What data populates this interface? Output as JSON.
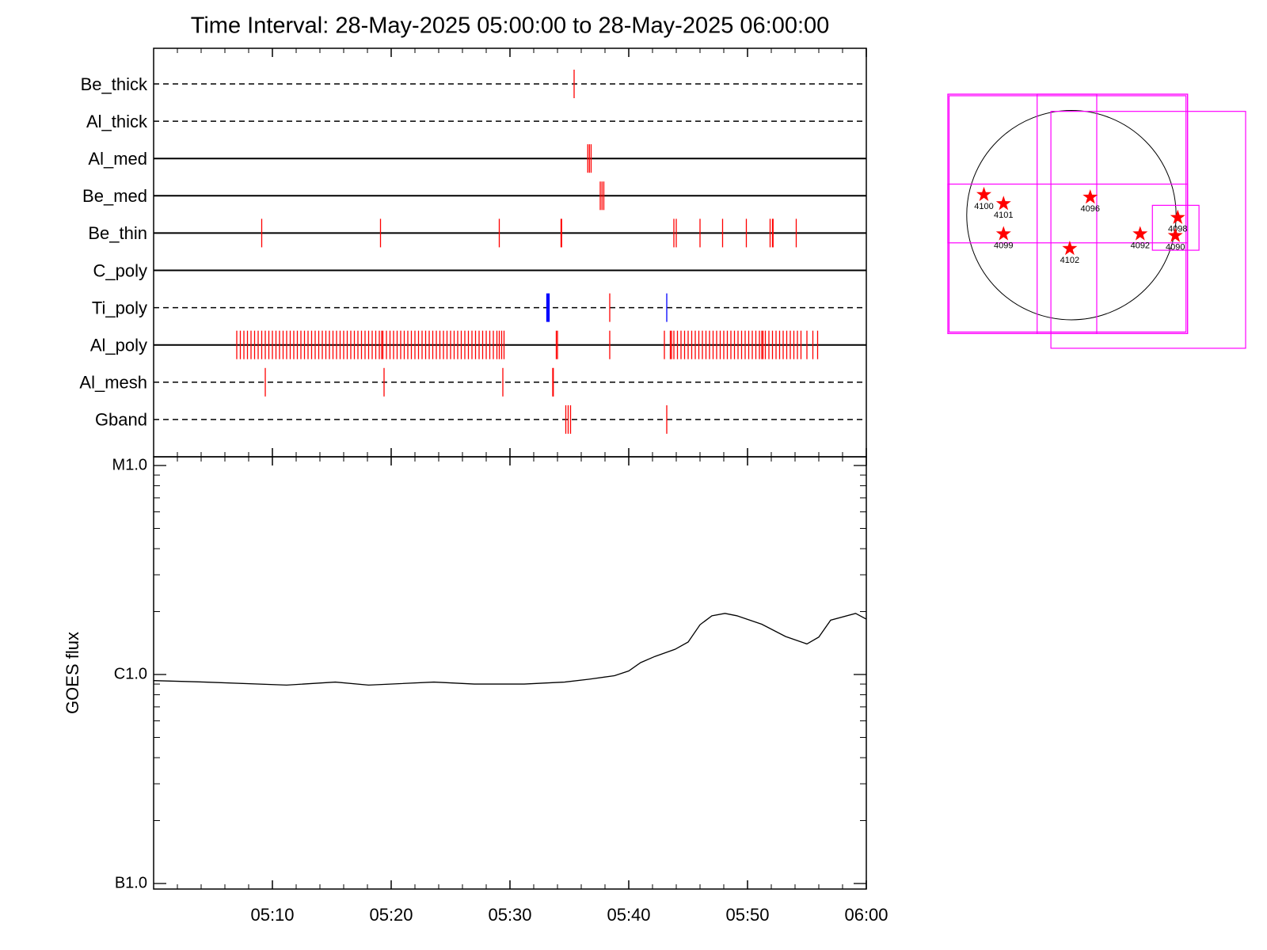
{
  "chart_data": [
    {
      "type": "timeline",
      "title": "Time Interval: 28-May-2025 05:00:00 to 28-May-2025 06:00:00",
      "xlim": [
        0,
        60
      ],
      "xticks": [
        {
          "value": 10,
          "label": "05:10"
        },
        {
          "value": 20,
          "label": "05:20"
        },
        {
          "value": 30,
          "label": "05:30"
        },
        {
          "value": 40,
          "label": "05:40"
        },
        {
          "value": 50,
          "label": "05:50"
        },
        {
          "value": 60,
          "label": "06:00"
        }
      ],
      "xminorticks": [
        2,
        4,
        6,
        8,
        12,
        14,
        16,
        18,
        22,
        24,
        26,
        28,
        32,
        34,
        36,
        38,
        42,
        44,
        46,
        48,
        52,
        54,
        56,
        58
      ],
      "series": [
        {
          "name": "Be_thick",
          "style": "dashed",
          "events": [
            {
              "color": "#ff0000",
              "x": [
                35.4
              ]
            }
          ]
        },
        {
          "name": "Al_thick",
          "style": "dashed",
          "events": []
        },
        {
          "name": "Al_med",
          "style": "solid",
          "events": [
            {
              "color": "#ff0000",
              "x": [
                36.55,
                36.69,
                36.83
              ]
            }
          ]
        },
        {
          "name": "Be_med",
          "style": "solid",
          "events": [
            {
              "color": "#ff0000",
              "x": [
                37.6,
                37.75,
                37.9
              ]
            }
          ]
        },
        {
          "name": "Be_thin",
          "style": "solid",
          "events": [
            {
              "color": "#ff0000",
              "x": [
                9.1,
                19.1,
                29.1,
                34.3,
                34.35,
                43.8,
                44.0,
                46.0,
                47.9,
                49.9,
                51.9,
                52.1,
                52.15,
                54.1
              ]
            }
          ]
        },
        {
          "name": "C_poly",
          "style": "solid",
          "events": []
        },
        {
          "name": "Ti_poly",
          "style": "dashed",
          "events": [
            {
              "color": "#0000ff",
              "x": [
                33.1,
                33.18,
                33.25,
                33.3,
                43.2
              ]
            },
            {
              "color": "#ff0000",
              "x": [
                38.4
              ]
            }
          ]
        },
        {
          "name": "Al_poly",
          "style": "solid",
          "events": [
            {
              "color": "#ff0000",
              "x": [
                7.0,
                7.3,
                7.6,
                7.9,
                8.2,
                8.5,
                8.8,
                9.1,
                9.4,
                9.7,
                10.0,
                10.3,
                10.6,
                10.9,
                11.2,
                11.5,
                11.8,
                12.1,
                12.4,
                12.7,
                13.0,
                13.3,
                13.6,
                13.9,
                14.2,
                14.5,
                14.8,
                15.1,
                15.4,
                15.7,
                16.0,
                16.3,
                16.6,
                16.9,
                17.2,
                17.5,
                17.8,
                18.1,
                18.4,
                18.7,
                19.0,
                19.2,
                19.3,
                19.6,
                19.9,
                20.2,
                20.5,
                20.8,
                21.1,
                21.4,
                21.7,
                22.0,
                22.3,
                22.6,
                22.9,
                23.2,
                23.5,
                23.8,
                24.1,
                24.4,
                24.7,
                25.0,
                25.3,
                25.6,
                25.9,
                26.2,
                26.5,
                26.8,
                27.1,
                27.4,
                27.7,
                28.0,
                28.3,
                28.6,
                28.9,
                29.1,
                29.3,
                29.5,
                33.9,
                34.0,
                38.4,
                43.0,
                43.5,
                43.6,
                43.8,
                44.1,
                44.4,
                44.7,
                45.0,
                45.3,
                45.6,
                45.9,
                46.2,
                46.5,
                46.8,
                47.1,
                47.4,
                47.7,
                48.0,
                48.3,
                48.6,
                48.9,
                49.2,
                49.5,
                49.8,
                50.1,
                50.4,
                50.7,
                51.0,
                51.2,
                51.3,
                51.5,
                51.8,
                52.1,
                52.4,
                52.7,
                53.0,
                53.3,
                53.6,
                53.9,
                54.2,
                54.5,
                55.0,
                55.5,
                55.9
              ]
            }
          ]
        },
        {
          "name": "Al_mesh",
          "style": "dashed",
          "events": [
            {
              "color": "#ff0000",
              "x": [
                9.4,
                19.4,
                29.4,
                33.6,
                33.65
              ]
            }
          ]
        },
        {
          "name": "Gband",
          "style": "dashed",
          "events": [
            {
              "color": "#ff0000",
              "x": [
                34.7,
                34.9,
                35.1,
                43.2
              ]
            }
          ]
        }
      ]
    },
    {
      "type": "line",
      "ylabel": "GOES flux",
      "log_scale": true,
      "color": "#000000",
      "xlim": [
        0,
        60
      ],
      "xticks": [
        {
          "value": 10,
          "label": "05:10"
        },
        {
          "value": 20,
          "label": "05:20"
        },
        {
          "value": 30,
          "label": "05:30"
        },
        {
          "value": 40,
          "label": "05:40"
        },
        {
          "value": 50,
          "label": "05:50"
        },
        {
          "value": 60,
          "label": "06:00"
        }
      ],
      "xminorticks": [
        2,
        4,
        6,
        8,
        12,
        14,
        16,
        18,
        22,
        24,
        26,
        28,
        32,
        34,
        36,
        38,
        42,
        44,
        46,
        48,
        52,
        54,
        56,
        58
      ],
      "ylim": [
        1e-07,
        1e-05
      ],
      "yticks": [
        {
          "value": 1e-07,
          "label": "B1.0"
        },
        {
          "value": 1e-06,
          "label": "C1.0"
        },
        {
          "value": 1e-05,
          "label": "M1.0"
        }
      ],
      "yminorticks": [
        2e-07,
        3e-07,
        4e-07,
        5e-07,
        6e-07,
        7e-07,
        8e-07,
        9e-07,
        2e-06,
        3e-06,
        4e-06,
        5e-06,
        6e-06,
        7e-06,
        8e-06,
        9e-06
      ],
      "x": [
        0,
        4.3,
        11.2,
        15.3,
        18.1,
        23.6,
        27.0,
        31.2,
        34.6,
        36.7,
        38.8,
        40.0,
        41.0,
        42.2,
        43.9,
        45.0,
        46.0,
        47.0,
        48.1,
        49.1,
        51.2,
        53.2,
        55.0,
        56.0,
        57.0,
        59.1,
        60.0
      ],
      "values": [
        9.35e-07,
        9.2e-07,
        8.9e-07,
        9.2e-07,
        8.9e-07,
        9.2e-07,
        9e-07,
        9e-07,
        9.2e-07,
        9.5e-07,
        9.87e-07,
        1.04e-06,
        1.14e-06,
        1.22e-06,
        1.32e-06,
        1.43e-06,
        1.73e-06,
        1.91e-06,
        1.96e-06,
        1.91e-06,
        1.74e-06,
        1.52e-06,
        1.4e-06,
        1.51e-06,
        1.82e-06,
        1.96e-06,
        1.84e-06
      ]
    },
    {
      "type": "scatter",
      "xlim": [
        -1121,
        1581
      ],
      "ylim": [
        -1225,
        1099
      ],
      "limb_radius": 950,
      "color": "#ff0000",
      "box_color": "#ff00ff",
      "labels": [
        "4100",
        "4101",
        "4096",
        "4099",
        "4102",
        "4092",
        "4098",
        "4090"
      ],
      "x": [
        -794,
        -616,
        171,
        -616,
        -15,
        624,
        965,
        943
      ],
      "y": [
        186,
        104,
        163,
        -171,
        -304,
        -171,
        -22,
        -186
      ],
      "boxes": [
        [
          -1121,
          -1076,
          1054,
          1099
        ],
        [
          -1110,
          -1062,
          1040,
          1085
        ],
        [
          -311,
          -1076,
          1054,
          1099
        ],
        [
          -1121,
          -1076,
          230,
          1099
        ],
        [
          -1121,
          -252,
          1054,
          282
        ],
        [
          -186,
          -1210,
          1581,
          943
        ],
        [
          735,
          -319,
          1158,
          89
        ]
      ]
    }
  ]
}
